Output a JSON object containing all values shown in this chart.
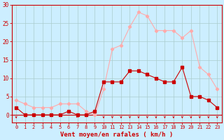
{
  "hours": [
    0,
    1,
    2,
    3,
    4,
    5,
    6,
    7,
    8,
    9,
    10,
    11,
    12,
    13,
    14,
    15,
    16,
    17,
    18,
    19,
    20,
    21,
    22,
    23
  ],
  "wind_avg": [
    2,
    0,
    0,
    0,
    0,
    0,
    1,
    0,
    0,
    1,
    9,
    9,
    9,
    12,
    12,
    11,
    10,
    9,
    9,
    13,
    5,
    5,
    4,
    2
  ],
  "wind_gust": [
    4,
    3,
    2,
    2,
    2,
    3,
    3,
    3,
    1,
    0,
    7,
    18,
    19,
    24,
    28,
    27,
    23,
    23,
    23,
    21,
    23,
    13,
    11,
    7
  ],
  "avg_color": "#cc0000",
  "gust_color": "#ffaaaa",
  "bg_color": "#cceeff",
  "grid_color": "#aacccc",
  "xlabel": "Vent moyen/en rafales ( km/h )",
  "xlabel_color": "#cc0000",
  "tick_color": "#cc0000",
  "spine_color": "#cc0000",
  "ylim": [
    -2,
    30
  ],
  "yticks": [
    0,
    5,
    10,
    15,
    20,
    25,
    30
  ],
  "arrow_up_hours": [
    7
  ],
  "arrow_down_hours": [
    0,
    10,
    11,
    12,
    13,
    14,
    15,
    16,
    17,
    18,
    19,
    20,
    21,
    22,
    23
  ]
}
